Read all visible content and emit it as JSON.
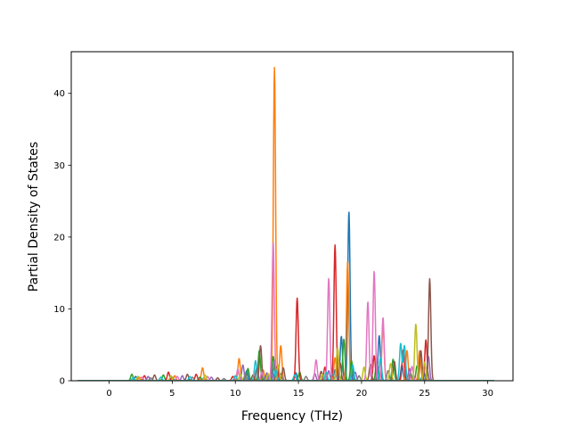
{
  "chart_data": {
    "type": "line",
    "title": "",
    "xlabel": "Frequency (THz)",
    "ylabel": "Partial Density of States",
    "xlim": [
      -3,
      32
    ],
    "ylim": [
      0,
      45.8
    ],
    "xticks": [
      0,
      5,
      10,
      15,
      20,
      25,
      30
    ],
    "yticks": [
      0,
      10,
      20,
      30,
      40
    ],
    "grid": false,
    "legend": "none",
    "colors": [
      "#1f77b4",
      "#ff7f0e",
      "#2ca02c",
      "#d62728",
      "#9467bd",
      "#8c564b",
      "#e377c2",
      "#7f7f7f",
      "#bcbd22",
      "#17becf"
    ],
    "series": [
      {
        "peaks": [
          [
            2.1,
            0.6
          ],
          [
            5.0,
            0.5
          ],
          [
            7.5,
            0.4
          ],
          [
            10.9,
            1.4
          ],
          [
            12.9,
            1.6
          ],
          [
            14.8,
            1.1
          ],
          [
            17.9,
            1.5
          ],
          [
            18.4,
            6.2
          ],
          [
            19.0,
            23.6
          ],
          [
            21.4,
            6.3
          ],
          [
            23.2,
            2.2
          ],
          [
            24.9,
            1.4
          ]
        ]
      },
      {
        "peaks": [
          [
            2.4,
            0.5
          ],
          [
            5.2,
            0.7
          ],
          [
            7.4,
            1.8
          ],
          [
            10.3,
            3.1
          ],
          [
            12.2,
            1.5
          ],
          [
            13.1,
            43.6
          ],
          [
            13.6,
            4.9
          ],
          [
            17.9,
            3.2
          ],
          [
            18.9,
            16.6
          ],
          [
            21.7,
            7.8
          ],
          [
            23.6,
            4.2
          ],
          [
            24.6,
            4.2
          ]
        ]
      },
      {
        "peaks": [
          [
            1.8,
            0.9
          ],
          [
            4.3,
            0.8
          ],
          [
            7.2,
            0.5
          ],
          [
            11.0,
            1.7
          ],
          [
            11.9,
            4.2
          ],
          [
            13.0,
            3.4
          ],
          [
            15.1,
            1.2
          ],
          [
            18.6,
            5.8
          ],
          [
            19.2,
            2.8
          ],
          [
            21.2,
            2.6
          ],
          [
            22.5,
            3.0
          ],
          [
            24.4,
            2.1
          ]
        ]
      },
      {
        "peaks": [
          [
            2.8,
            0.7
          ],
          [
            4.7,
            1.2
          ],
          [
            6.9,
            0.9
          ],
          [
            9.8,
            0.6
          ],
          [
            11.7,
            1.8
          ],
          [
            13.3,
            2.0
          ],
          [
            14.9,
            11.5
          ],
          [
            17.1,
            1.9
          ],
          [
            17.9,
            18.9
          ],
          [
            21.0,
            3.5
          ],
          [
            23.3,
            4.3
          ],
          [
            25.1,
            5.7
          ]
        ]
      },
      {
        "peaks": [
          [
            3.1,
            0.6
          ],
          [
            5.8,
            0.7
          ],
          [
            8.1,
            0.5
          ],
          [
            10.6,
            2.2
          ],
          [
            12.5,
            1.1
          ],
          [
            13.1,
            2.8
          ],
          [
            16.3,
            1.0
          ],
          [
            17.4,
            1.4
          ],
          [
            19.5,
            1.2
          ],
          [
            21.3,
            2.0
          ],
          [
            23.8,
            1.7
          ],
          [
            25.3,
            3.4
          ]
        ]
      },
      {
        "peaks": [
          [
            3.6,
            0.8
          ],
          [
            6.2,
            0.9
          ],
          [
            8.6,
            0.4
          ],
          [
            11.4,
            0.8
          ],
          [
            12.0,
            4.9
          ],
          [
            13.8,
            1.8
          ],
          [
            16.8,
            1.3
          ],
          [
            18.3,
            2.5
          ],
          [
            20.7,
            2.3
          ],
          [
            22.6,
            2.7
          ],
          [
            24.7,
            4.2
          ],
          [
            25.4,
            14.2
          ]
        ]
      },
      {
        "peaks": [
          [
            2.6,
            0.5
          ],
          [
            5.4,
            0.6
          ],
          [
            7.8,
            0.6
          ],
          [
            10.2,
            1.6
          ],
          [
            12.1,
            1.2
          ],
          [
            13.0,
            19.3
          ],
          [
            16.4,
            2.9
          ],
          [
            17.4,
            14.3
          ],
          [
            20.5,
            11.0
          ],
          [
            21.0,
            15.3
          ],
          [
            21.7,
            8.8
          ],
          [
            24.0,
            2.0
          ]
        ]
      },
      {
        "peaks": [
          [
            3.3,
            0.4
          ],
          [
            6.6,
            0.5
          ],
          [
            9.1,
            0.3
          ],
          [
            10.8,
            0.9
          ],
          [
            12.4,
            0.7
          ],
          [
            13.6,
            1.0
          ],
          [
            15.6,
            0.6
          ],
          [
            17.7,
            0.9
          ],
          [
            19.8,
            0.7
          ],
          [
            22.1,
            1.4
          ],
          [
            23.9,
            1.0
          ],
          [
            25.2,
            1.6
          ]
        ]
      },
      {
        "peaks": [
          [
            2.3,
            0.6
          ],
          [
            4.9,
            0.7
          ],
          [
            7.6,
            0.8
          ],
          [
            10.4,
            0.9
          ],
          [
            12.6,
            1.0
          ],
          [
            13.4,
            2.2
          ],
          [
            16.9,
            0.9
          ],
          [
            18.1,
            4.6
          ],
          [
            20.2,
            1.9
          ],
          [
            22.3,
            2.4
          ],
          [
            24.3,
            7.9
          ],
          [
            25.0,
            2.6
          ]
        ]
      },
      {
        "peaks": [
          [
            1.9,
            0.4
          ],
          [
            4.1,
            0.5
          ],
          [
            6.4,
            0.6
          ],
          [
            10.0,
            0.7
          ],
          [
            11.6,
            2.8
          ],
          [
            13.2,
            1.5
          ],
          [
            14.7,
            0.8
          ],
          [
            17.2,
            1.2
          ],
          [
            19.3,
            2.2
          ],
          [
            21.5,
            3.2
          ],
          [
            23.1,
            5.2
          ],
          [
            23.4,
            4.9
          ]
        ]
      }
    ]
  }
}
